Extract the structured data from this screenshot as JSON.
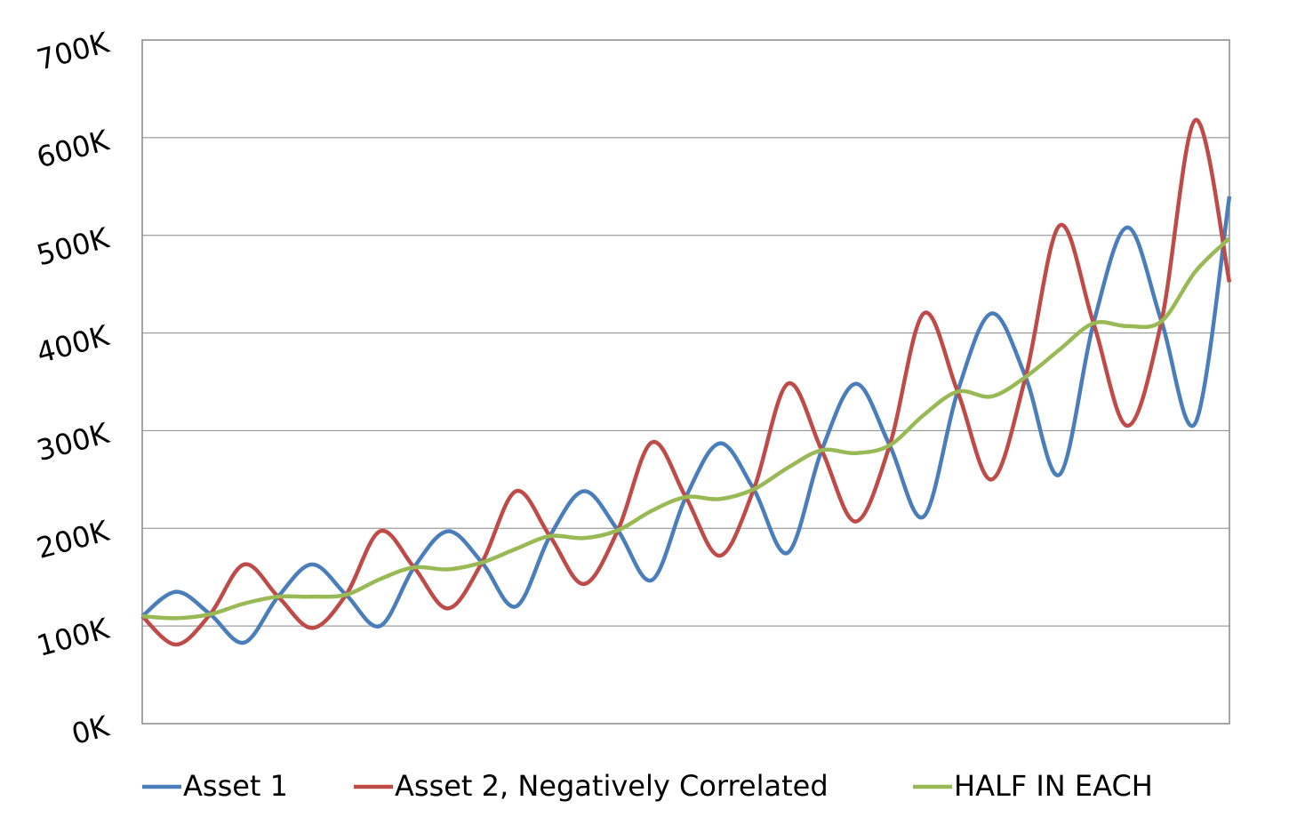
{
  "chart_data": {
    "type": "line",
    "series": [
      {
        "name": "Asset 1",
        "color": "#4a7ebb",
        "values": [
          110000,
          135000,
          112000,
          83000,
          130000,
          163000,
          132000,
          100000,
          160000,
          197000,
          165000,
          120000,
          192000,
          238000,
          198000,
          147000,
          232000,
          287000,
          240000,
          175000,
          280000,
          348000,
          285000,
          212000,
          340000,
          420000,
          355000,
          255000,
          410000,
          508000,
          412000,
          308000,
          540000
        ]
      },
      {
        "name": "Asset 2, Negatively Correlated",
        "color": "#be4b48",
        "values": [
          110000,
          81000,
          112000,
          163000,
          130000,
          98000,
          132000,
          197000,
          160000,
          118000,
          165000,
          238000,
          192000,
          143000,
          198000,
          288000,
          232000,
          172000,
          240000,
          348000,
          280000,
          207000,
          285000,
          420000,
          340000,
          250000,
          355000,
          510000,
          410000,
          305000,
          412000,
          618000,
          452000
        ]
      },
      {
        "name": "HALF IN EACH",
        "color": "#98b954",
        "values": [
          110000,
          108000,
          112000,
          123000,
          130000,
          130000,
          132000,
          148000,
          160000,
          158000,
          165000,
          179000,
          192000,
          190000,
          198000,
          218000,
          232000,
          230000,
          240000,
          262000,
          280000,
          277000,
          285000,
          316000,
          340000,
          335000,
          355000,
          383000,
          410000,
          407000,
          412000,
          463000,
          497000
        ]
      }
    ],
    "ylim": [
      0,
      700000
    ],
    "yticks": [
      {
        "value": 0,
        "label": "0K"
      },
      {
        "value": 100000,
        "label": "100K"
      },
      {
        "value": 200000,
        "label": "200K"
      },
      {
        "value": 300000,
        "label": "300K"
      },
      {
        "value": 400000,
        "label": "400K"
      },
      {
        "value": 500000,
        "label": "500K"
      },
      {
        "value": 600000,
        "label": "600K"
      },
      {
        "value": 700000,
        "label": "700K"
      }
    ],
    "grid": true,
    "legend": "bottom"
  }
}
